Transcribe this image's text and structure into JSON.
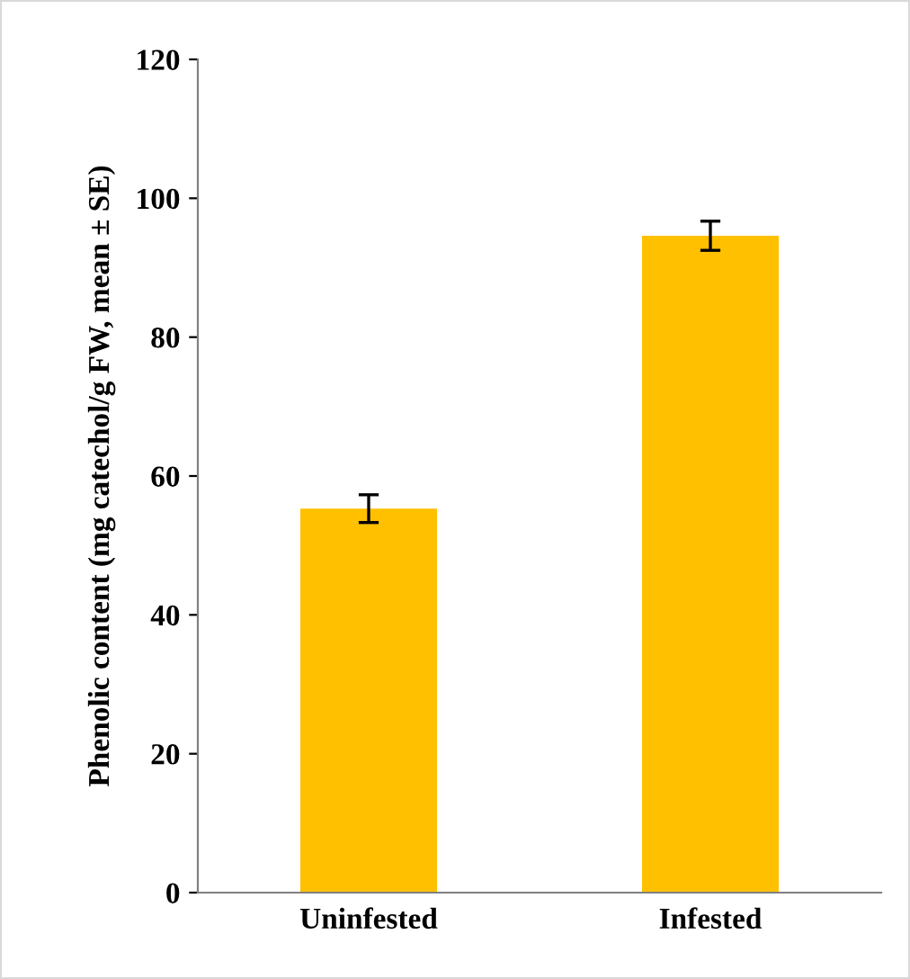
{
  "chart_data": {
    "type": "bar",
    "ylabel": "Phenolic content (mg catechol/g FW, mean ± SE)",
    "categories": [
      "Uninfested",
      "Infested"
    ],
    "values": [
      55.3,
      94.6
    ],
    "errors": [
      2.0,
      2.1
    ],
    "color": "#ffc000",
    "ylim": [
      0,
      120
    ],
    "yticks": [
      0,
      20,
      40,
      60,
      80,
      100,
      120
    ],
    "grid": false,
    "legend": false
  }
}
